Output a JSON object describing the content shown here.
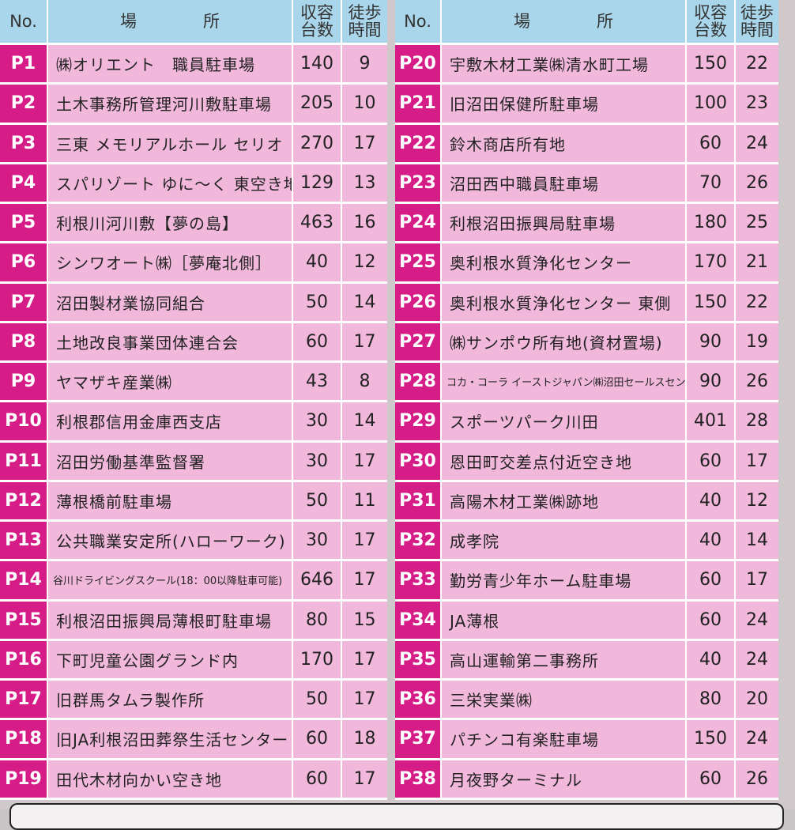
{
  "headers": {
    "no": "No.",
    "place_1": "場",
    "place_2": "所",
    "capacity_1": "収容",
    "capacity_2": "台数",
    "walk_1": "徒歩",
    "walk_2": "時間"
  },
  "left_rows": [
    {
      "no": "P1",
      "name": "㈱オリエント　職員駐車場",
      "capacity": "140",
      "walk": "9"
    },
    {
      "no": "P2",
      "name": "土木事務所管理河川敷駐車場",
      "capacity": "205",
      "walk": "10"
    },
    {
      "no": "P3",
      "name": "三東 メモリアルホール セリオ",
      "capacity": "270",
      "walk": "17"
    },
    {
      "no": "P4",
      "name": "スパリゾート ゆに～く 東空き地",
      "capacity": "129",
      "walk": "13"
    },
    {
      "no": "P5",
      "name": "利根川河川敷【夢の島】",
      "capacity": "463",
      "walk": "16"
    },
    {
      "no": "P6",
      "name": "シンワオート㈱［夢庵北側］",
      "capacity": "40",
      "walk": "12"
    },
    {
      "no": "P7",
      "name": "沼田製材業協同組合",
      "capacity": "50",
      "walk": "14"
    },
    {
      "no": "P8",
      "name": "土地改良事業団体連合会",
      "capacity": "60",
      "walk": "17"
    },
    {
      "no": "P9",
      "name": "ヤマザキ産業㈱",
      "capacity": "43",
      "walk": "8"
    },
    {
      "no": "P10",
      "name": "利根郡信用金庫西支店",
      "capacity": "30",
      "walk": "14"
    },
    {
      "no": "P11",
      "name": "沼田労働基準監督署",
      "capacity": "30",
      "walk": "17"
    },
    {
      "no": "P12",
      "name": "薄根橋前駐車場",
      "capacity": "50",
      "walk": "11"
    },
    {
      "no": "P13",
      "name": "公共職業安定所(ハローワーク)",
      "capacity": "30",
      "walk": "17"
    },
    {
      "no": "P14",
      "name": "谷川ドライビングスクール(18：00以降駐車可能)",
      "capacity": "646",
      "walk": "17"
    },
    {
      "no": "P15",
      "name": "利根沼田振興局薄根町駐車場",
      "capacity": "80",
      "walk": "15"
    },
    {
      "no": "P16",
      "name": "下町児童公園グランド内",
      "capacity": "170",
      "walk": "17"
    },
    {
      "no": "P17",
      "name": "旧群馬タムラ製作所",
      "capacity": "50",
      "walk": "17"
    },
    {
      "no": "P18",
      "name": "旧JA利根沼田葬祭生活センター",
      "capacity": "60",
      "walk": "18"
    },
    {
      "no": "P19",
      "name": "田代木材向かい空き地",
      "capacity": "60",
      "walk": "17"
    }
  ],
  "right_rows": [
    {
      "no": "P20",
      "name": "宇敷木材工業㈱清水町工場",
      "capacity": "150",
      "walk": "22"
    },
    {
      "no": "P21",
      "name": "旧沼田保健所駐車場",
      "capacity": "100",
      "walk": "23"
    },
    {
      "no": "P22",
      "name": "鈴木商店所有地",
      "capacity": "60",
      "walk": "24"
    },
    {
      "no": "P23",
      "name": "沼田西中職員駐車場",
      "capacity": "70",
      "walk": "26"
    },
    {
      "no": "P24",
      "name": "利根沼田振興局駐車場",
      "capacity": "180",
      "walk": "25"
    },
    {
      "no": "P25",
      "name": "奥利根水質浄化センター",
      "capacity": "170",
      "walk": "21"
    },
    {
      "no": "P26",
      "name": "奥利根水質浄化センター 東側",
      "capacity": "150",
      "walk": "22"
    },
    {
      "no": "P27",
      "name": "㈱サンポウ所有地(資材置場)",
      "capacity": "90",
      "walk": "19"
    },
    {
      "no": "P28",
      "name": "コカ・コーラ イーストジャパン㈱沼田セールスセンター",
      "capacity": "90",
      "walk": "26"
    },
    {
      "no": "P29",
      "name": "スポーツパーク川田",
      "capacity": "401",
      "walk": "28"
    },
    {
      "no": "P30",
      "name": "恩田町交差点付近空き地",
      "capacity": "60",
      "walk": "17"
    },
    {
      "no": "P31",
      "name": "高陽木材工業㈱跡地",
      "capacity": "40",
      "walk": "12"
    },
    {
      "no": "P32",
      "name": "成孝院",
      "capacity": "40",
      "walk": "14"
    },
    {
      "no": "P33",
      "name": "勤労青少年ホーム駐車場",
      "capacity": "60",
      "walk": "17"
    },
    {
      "no": "P34",
      "name": "JA薄根",
      "capacity": "60",
      "walk": "24"
    },
    {
      "no": "P35",
      "name": "高山運輸第二事務所",
      "capacity": "40",
      "walk": "24"
    },
    {
      "no": "P36",
      "name": "三栄実業㈱",
      "capacity": "80",
      "walk": "20"
    },
    {
      "no": "P37",
      "name": "パチンコ有楽駐車場",
      "capacity": "150",
      "walk": "24"
    },
    {
      "no": "P38",
      "name": "月夜野ターミナル",
      "capacity": "60",
      "walk": "26"
    }
  ]
}
